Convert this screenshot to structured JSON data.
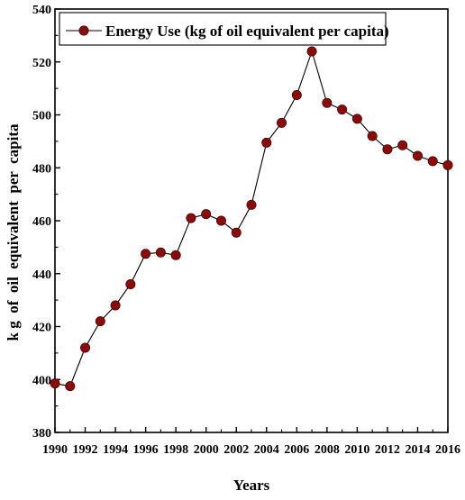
{
  "chart_data": {
    "type": "line",
    "title": "",
    "xlabel": "Years",
    "ylabel": "k g  of  oil  equivalent  per  capita",
    "xlim": [
      1990,
      2016
    ],
    "ylim": [
      380,
      540
    ],
    "xticks": [
      "1990",
      "1992",
      "1994",
      "1996",
      "1998",
      "2000",
      "2002",
      "2004",
      "2006",
      "2008",
      "2010",
      "2012",
      "2014",
      "2016"
    ],
    "yticks": [
      "380",
      "400",
      "420",
      "440",
      "460",
      "480",
      "500",
      "520",
      "540"
    ],
    "legend_position": "top",
    "grid": false,
    "colors": {
      "line": "#000000",
      "marker": "#8b0a0a"
    },
    "series": [
      {
        "name": "Energy Use (kg of oil equivalent per capita)",
        "x": [
          1990,
          1991,
          1992,
          1993,
          1994,
          1995,
          1996,
          1997,
          1998,
          1999,
          2000,
          2001,
          2002,
          2003,
          2004,
          2005,
          2006,
          2007,
          2008,
          2009,
          2010,
          2011,
          2012,
          2013,
          2014,
          2015,
          2016
        ],
        "values": [
          398.5,
          397.5,
          412,
          422,
          428,
          436,
          447.5,
          448,
          447,
          461,
          462.5,
          460,
          455.5,
          466,
          489.5,
          497,
          507.5,
          524,
          504.5,
          502,
          498.5,
          492,
          487,
          488.5,
          484.5,
          482.5,
          481
        ]
      }
    ]
  }
}
